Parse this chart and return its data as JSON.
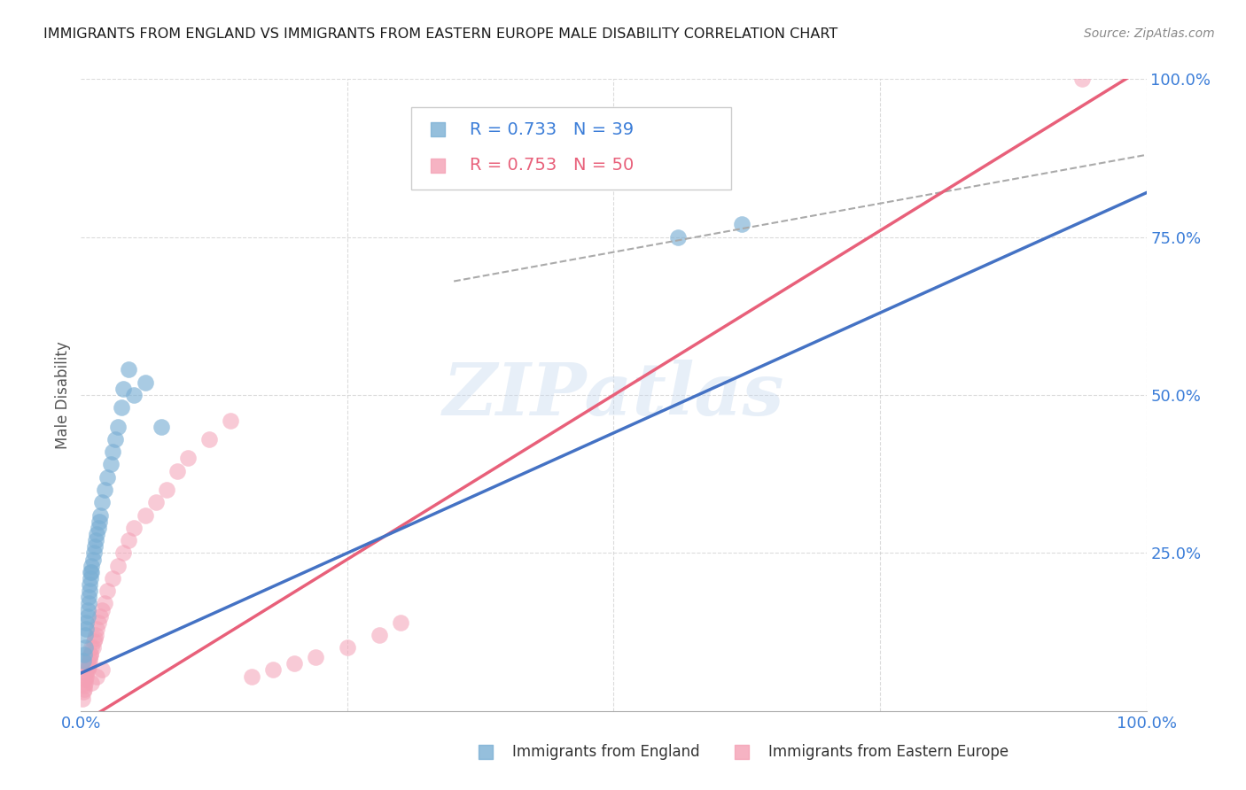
{
  "title": "IMMIGRANTS FROM ENGLAND VS IMMIGRANTS FROM EASTERN EUROPE MALE DISABILITY CORRELATION CHART",
  "source": "Source: ZipAtlas.com",
  "ylabel": "Male Disability",
  "legend_blue_R": "0.733",
  "legend_blue_N": "39",
  "legend_pink_R": "0.753",
  "legend_pink_N": "50",
  "blue_color": "#7BAFD4",
  "pink_color": "#F4A0B5",
  "blue_line_color": "#4472C4",
  "pink_line_color": "#E8607A",
  "dashed_line_color": "#AAAAAA",
  "watermark": "ZIPatlas",
  "blue_x": [
    0.002,
    0.003,
    0.004,
    0.004,
    0.005,
    0.005,
    0.006,
    0.006,
    0.007,
    0.007,
    0.008,
    0.008,
    0.009,
    0.009,
    0.01,
    0.01,
    0.011,
    0.012,
    0.013,
    0.014,
    0.015,
    0.016,
    0.017,
    0.018,
    0.02,
    0.022,
    0.025,
    0.028,
    0.03,
    0.032,
    0.035,
    0.038,
    0.04,
    0.045,
    0.05,
    0.06,
    0.075,
    0.56,
    0.62
  ],
  "blue_y": [
    0.08,
    0.09,
    0.1,
    0.12,
    0.13,
    0.14,
    0.15,
    0.16,
    0.17,
    0.18,
    0.19,
    0.2,
    0.21,
    0.22,
    0.22,
    0.23,
    0.24,
    0.25,
    0.26,
    0.27,
    0.28,
    0.29,
    0.3,
    0.31,
    0.33,
    0.35,
    0.37,
    0.39,
    0.41,
    0.43,
    0.45,
    0.48,
    0.51,
    0.54,
    0.5,
    0.52,
    0.45,
    0.75,
    0.77
  ],
  "pink_x": [
    0.001,
    0.002,
    0.003,
    0.003,
    0.004,
    0.004,
    0.005,
    0.005,
    0.006,
    0.006,
    0.007,
    0.007,
    0.008,
    0.008,
    0.009,
    0.009,
    0.01,
    0.011,
    0.012,
    0.013,
    0.014,
    0.015,
    0.016,
    0.018,
    0.02,
    0.022,
    0.025,
    0.03,
    0.035,
    0.04,
    0.045,
    0.05,
    0.06,
    0.07,
    0.08,
    0.09,
    0.1,
    0.12,
    0.14,
    0.16,
    0.18,
    0.2,
    0.22,
    0.25,
    0.28,
    0.3,
    0.01,
    0.015,
    0.02,
    0.94
  ],
  "pink_y": [
    0.02,
    0.03,
    0.035,
    0.04,
    0.045,
    0.05,
    0.055,
    0.06,
    0.065,
    0.07,
    0.07,
    0.075,
    0.08,
    0.085,
    0.09,
    0.09,
    0.1,
    0.1,
    0.11,
    0.115,
    0.12,
    0.13,
    0.14,
    0.15,
    0.16,
    0.17,
    0.19,
    0.21,
    0.23,
    0.25,
    0.27,
    0.29,
    0.31,
    0.33,
    0.35,
    0.38,
    0.4,
    0.43,
    0.46,
    0.055,
    0.065,
    0.075,
    0.085,
    0.1,
    0.12,
    0.14,
    0.045,
    0.055,
    0.065,
    1.0
  ],
  "blue_line": [
    0.0,
    1.0,
    0.06,
    0.82
  ],
  "pink_line": [
    0.0,
    1.0,
    -0.02,
    1.02
  ],
  "dashed_line": [
    0.35,
    1.0,
    0.68,
    0.88
  ],
  "xlim": [
    0.0,
    1.0
  ],
  "ylim": [
    0.0,
    1.0
  ],
  "background_color": "#FFFFFF",
  "grid_color": "#CCCCCC"
}
